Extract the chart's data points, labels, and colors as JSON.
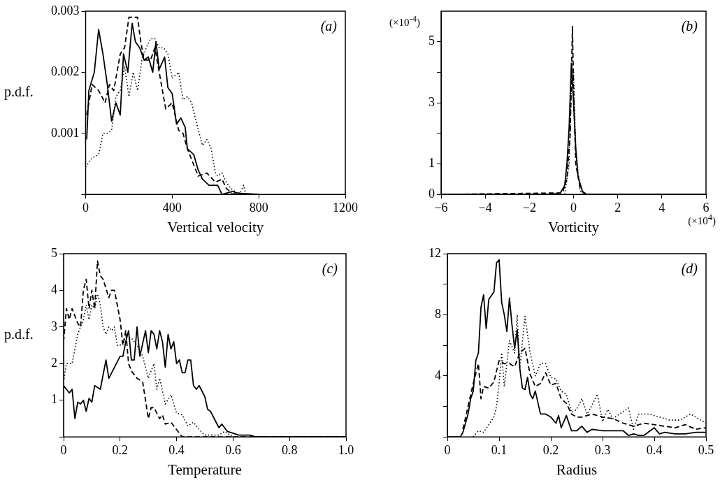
{
  "chart_data": [
    {
      "type": "line",
      "xlabel": "Vertical velocity",
      "ylabel": "p.d.f.",
      "annotations": [
        "(a)"
      ],
      "xlim": [
        0,
        1200
      ],
      "xticks": [
        0,
        400,
        800,
        1200
      ],
      "ylim": [
        0,
        0.003
      ],
      "yticks": [
        {
          "value": 0,
          "label": null
        },
        0.001,
        0.002,
        0.003
      ],
      "series": [
        {
          "color": "#000000",
          "line_style": "solid",
          "x": [
            5,
            15,
            40,
            60,
            80,
            100,
            120,
            140,
            160,
            175,
            195,
            215,
            230,
            250,
            270,
            290,
            310,
            325,
            340,
            365,
            380,
            400,
            420,
            440,
            460,
            470,
            500,
            520,
            540,
            570,
            610,
            630,
            660,
            680,
            700,
            760,
            800
          ],
          "values": [
            0.0009,
            0.0017,
            0.002,
            0.0027,
            0.0023,
            0.0018,
            0.0012,
            0.0015,
            0.0013,
            0.0023,
            0.002,
            0.0028,
            0.0025,
            0.0024,
            0.0022,
            0.00225,
            0.002,
            0.0025,
            0.00205,
            0.00225,
            0.00175,
            0.00165,
            0.00115,
            0.00125,
            0.0011,
            0.00075,
            0.00065,
            0.0004,
            0.00025,
            0.00015,
            0.00015,
            0,
            3e-05,
            5e-05,
            2e-05,
            1e-05,
            0
          ]
        },
        {
          "color": "#000000",
          "line_style": "dashed",
          "x": [
            5,
            30,
            60,
            90,
            110,
            130,
            160,
            180,
            200,
            240,
            255,
            270,
            300,
            320,
            340,
            370,
            400,
            430,
            450,
            470,
            520,
            560,
            600,
            630,
            650,
            680,
            700,
            730
          ],
          "values": [
            0.0013,
            0.0018,
            0.0017,
            0.0015,
            0.0018,
            0.0017,
            0.0023,
            0.0024,
            0.0029,
            0.0029,
            0.0025,
            0.0022,
            0.0022,
            0.0024,
            0.002,
            0.0014,
            0.0015,
            0.00105,
            0.001,
            0.00075,
            0.0003,
            0.00035,
            0.0002,
            0.00025,
            0.0001,
            0,
            3e-05,
            0
          ]
        },
        {
          "color": "#000000",
          "line_style": "dotted",
          "x": [
            0,
            30,
            60,
            80,
            100,
            120,
            140,
            160,
            180,
            200,
            220,
            240,
            260,
            280,
            300,
            320,
            340,
            360,
            380,
            400,
            430,
            450,
            470,
            490,
            510,
            540,
            560,
            580,
            600,
            610,
            630,
            650,
            670,
            690,
            710,
            730,
            740,
            800
          ],
          "values": [
            0.00045,
            0.0006,
            0.00065,
            0.001,
            0.001,
            0.00105,
            0.0016,
            0.0017,
            0.0021,
            0.0016,
            0.002,
            0.0017,
            0.0022,
            0.0024,
            0.00255,
            0.00255,
            0.0024,
            0.0024,
            0.0023,
            0.0019,
            0.002,
            0.00155,
            0.0016,
            0.0015,
            0.0012,
            0.0008,
            0.0009,
            0.00075,
            0.00035,
            0.0003,
            0.00035,
            0.0002,
            0.0001,
            5e-05,
            0,
            0.00015,
            0,
            0
          ]
        }
      ]
    },
    {
      "type": "line",
      "xlabel": "Vorticity",
      "annotations": [
        "(b)",
        "(×10$^{-4}$)",
        "(×10$^{4}$)"
      ],
      "xlim": [
        -6,
        6
      ],
      "xticks": [
        -6,
        -4,
        -2,
        0,
        2,
        4,
        6
      ],
      "ylim": [
        0,
        6
      ],
      "yticks": [
        0,
        1,
        {
          "value": 2,
          "label": null
        },
        3,
        {
          "value": 4,
          "label": null
        },
        5
      ],
      "series": [
        {
          "color": "#000000",
          "line_style": "solid",
          "x": [
            -6,
            -1,
            -0.6,
            -0.4,
            -0.3,
            -0.2,
            -0.1,
            0,
            0.1,
            0.2,
            0.4,
            0.6,
            6
          ],
          "values": [
            0,
            0,
            0.05,
            0.3,
            1,
            2.2,
            4.3,
            3,
            1.5,
            0.6,
            0.1,
            0,
            0
          ]
        },
        {
          "color": "#000000",
          "line_style": "dashed",
          "x": [
            -6,
            -0.5,
            -0.3,
            -0.15,
            -0.05,
            0,
            0.1,
            0.3,
            0.5,
            6
          ],
          "values": [
            0,
            0.05,
            0.5,
            2,
            5.5,
            3.5,
            1,
            0.2,
            0,
            0
          ]
        },
        {
          "color": "#000000",
          "line_style": "dotted",
          "x": [
            -0.4,
            -0.2,
            -0.1,
            0,
            0.1,
            0.3,
            0.5
          ],
          "values": [
            0,
            1,
            3.5,
            4,
            1.5,
            0.1,
            0
          ]
        }
      ]
    },
    {
      "type": "line",
      "xlabel": "Temperature",
      "ylabel": "p.d.f.",
      "annotations": [
        "(c)"
      ],
      "xlim": [
        0,
        1
      ],
      "xticks": [
        0,
        0.2,
        0.4,
        0.6,
        0.8,
        {
          "value": 1,
          "label": "1.0"
        }
      ],
      "ylim": [
        0,
        5
      ],
      "yticks": [
        {
          "value": 0,
          "label": null
        },
        1,
        2,
        3,
        4,
        5
      ],
      "series": [
        {
          "color": "#000000",
          "line_style": "solid",
          "x": [
            0,
            0.02,
            0.03,
            0.04,
            0.05,
            0.06,
            0.07,
            0.08,
            0.09,
            0.1,
            0.11,
            0.13,
            0.15,
            0.16,
            0.18,
            0.2,
            0.21,
            0.22,
            0.23,
            0.24,
            0.25,
            0.26,
            0.27,
            0.29,
            0.3,
            0.31,
            0.32,
            0.33,
            0.34,
            0.35,
            0.36,
            0.37,
            0.38,
            0.39,
            0.4,
            0.41,
            0.42,
            0.43,
            0.44,
            0.45,
            0.46,
            0.47,
            0.48,
            0.5,
            0.51,
            0.52,
            0.54,
            0.55,
            0.56,
            0.58,
            0.6,
            0.62,
            0.66,
            0.68,
            1.0
          ],
          "values": [
            1.4,
            1.2,
            1.3,
            0.5,
            0.95,
            0.9,
            1,
            0.7,
            1.05,
            0.95,
            1.4,
            1.3,
            2.1,
            1.6,
            1.9,
            2.2,
            2.2,
            2.6,
            2.9,
            2.1,
            2.1,
            3.0,
            2.2,
            2.9,
            2.3,
            2.9,
            2.8,
            2.4,
            2.9,
            2.6,
            1.9,
            2.8,
            2.4,
            2.6,
            2.0,
            2.1,
            1.75,
            1.75,
            2.1,
            2.1,
            1.4,
            1.3,
            1.4,
            1.1,
            0.75,
            0.7,
            0.4,
            0.25,
            0.35,
            0.15,
            0.1,
            0.05,
            0.05,
            0,
            0
          ]
        },
        {
          "color": "#000000",
          "line_style": "dashed",
          "x": [
            0,
            0.01,
            0.02,
            0.03,
            0.05,
            0.06,
            0.07,
            0.08,
            0.09,
            0.1,
            0.11,
            0.12,
            0.13,
            0.14,
            0.16,
            0.17,
            0.18,
            0.2,
            0.21,
            0.22,
            0.23,
            0.24,
            0.26,
            0.28,
            0.3,
            0.31,
            0.32,
            0.34,
            0.35,
            0.36,
            0.38,
            0.4,
            0.42,
            0.44,
            1.0
          ],
          "values": [
            2.6,
            3.5,
            3.2,
            3.5,
            3.1,
            3.0,
            4.0,
            4.3,
            3.5,
            4.0,
            3.5,
            4.8,
            4.4,
            4.3,
            3.8,
            4.0,
            4.0,
            3.2,
            2.5,
            2.9,
            2.0,
            1.8,
            1.6,
            1.5,
            0.5,
            0.8,
            0.8,
            0.5,
            0.6,
            0.35,
            0.4,
            0.2,
            0,
            0,
            0
          ]
        },
        {
          "color": "#000000",
          "line_style": "dotted",
          "x": [
            0,
            0.01,
            0.03,
            0.05,
            0.06,
            0.07,
            0.08,
            0.09,
            0.1,
            0.11,
            0.12,
            0.13,
            0.14,
            0.15,
            0.16,
            0.17,
            0.18,
            0.19,
            0.2,
            0.22,
            0.24,
            0.26,
            0.28,
            0.3,
            0.32,
            0.33,
            0.34,
            0.36,
            0.38,
            0.4,
            0.42,
            0.44,
            0.46,
            0.48,
            0.5,
            0.52,
            0.55,
            0.57,
            0.6,
            1.0
          ],
          "values": [
            1.5,
            2.0,
            2.0,
            2.8,
            3.0,
            3.2,
            3.6,
            3.2,
            3.6,
            3.5,
            3.9,
            3.6,
            3.0,
            2.8,
            3.0,
            2.9,
            3.0,
            2.5,
            2.5,
            2.7,
            2.7,
            2.5,
            2.2,
            1.6,
            2.0,
            1.3,
            1.6,
            0.9,
            1.15,
            0.65,
            0.6,
            0.3,
            0.4,
            0.2,
            0.05,
            0.05,
            0.05,
            0.15,
            0,
            0
          ]
        }
      ]
    },
    {
      "type": "line",
      "xlabel": "Radius",
      "annotations": [
        "(d)"
      ],
      "xlim": [
        0,
        0.5
      ],
      "xticks": [
        0,
        0.1,
        0.2,
        0.3,
        0.4,
        0.5
      ],
      "ylim": [
        0,
        12
      ],
      "yticks": [
        {
          "value": 0,
          "label": null
        },
        {
          "value": 2,
          "label": null
        },
        4,
        {
          "value": 6,
          "label": null
        },
        8,
        {
          "value": 10,
          "label": null
        },
        12
      ],
      "series": [
        {
          "color": "#000000",
          "line_style": "solid",
          "x": [
            0,
            0.025,
            0.03,
            0.04,
            0.045,
            0.05,
            0.055,
            0.06,
            0.065,
            0.07,
            0.075,
            0.08,
            0.09,
            0.095,
            0.1,
            0.105,
            0.11,
            0.115,
            0.12,
            0.125,
            0.13,
            0.135,
            0.14,
            0.145,
            0.15,
            0.155,
            0.16,
            0.165,
            0.17,
            0.18,
            0.19,
            0.2,
            0.21,
            0.215,
            0.22,
            0.23,
            0.24,
            0.25,
            0.26,
            0.27,
            0.28,
            0.3,
            0.32,
            0.34,
            0.35,
            0.36,
            0.37,
            0.38,
            0.4,
            0.41,
            0.42,
            0.44,
            0.46,
            0.48,
            0.5
          ],
          "values": [
            0,
            0,
            0.3,
            1.5,
            2.5,
            3,
            5,
            5.5,
            8.5,
            9.3,
            7.1,
            9,
            9.5,
            11.4,
            11.6,
            8.8,
            8,
            6.9,
            9.1,
            7.3,
            5.8,
            7,
            4.5,
            3.2,
            3.1,
            3.9,
            2.8,
            2.5,
            3.0,
            1.5,
            1.5,
            1.3,
            0.9,
            1.4,
            0.6,
            1.4,
            0.4,
            0.4,
            0.7,
            0.3,
            0.5,
            0.4,
            0.4,
            0.4,
            0.1,
            0.2,
            0.1,
            0.1,
            0.6,
            0.2,
            0.3,
            0.2,
            0.2,
            0.3,
            0.3
          ]
        },
        {
          "color": "#000000",
          "line_style": "dashed",
          "x": [
            0.03,
            0.04,
            0.05,
            0.06,
            0.065,
            0.07,
            0.08,
            0.09,
            0.1,
            0.11,
            0.12,
            0.13,
            0.14,
            0.15,
            0.16,
            0.17,
            0.18,
            0.19,
            0.2,
            0.21,
            0.22,
            0.23,
            0.24,
            0.25,
            0.26,
            0.28,
            0.3,
            0.32,
            0.34,
            0.36,
            0.38,
            0.4,
            0.42,
            0.44,
            0.46,
            0.48,
            0.5
          ],
          "values": [
            0.5,
            2,
            3.5,
            4.8,
            2.5,
            3.3,
            3.2,
            3.6,
            5,
            4.8,
            4.8,
            4.6,
            5.5,
            5.8,
            4.1,
            3.3,
            3.5,
            4.2,
            3.4,
            3.5,
            2.5,
            2.2,
            1.5,
            1.3,
            1.3,
            1.5,
            1.3,
            1.2,
            0.9,
            0.7,
            0.9,
            0.8,
            0.7,
            0.6,
            0.8,
            0.5,
            0.6
          ]
        },
        {
          "color": "#000000",
          "line_style": "dotted",
          "x": [
            0.05,
            0.06,
            0.07,
            0.08,
            0.09,
            0.095,
            0.1,
            0.105,
            0.11,
            0.12,
            0.13,
            0.135,
            0.14,
            0.15,
            0.16,
            0.17,
            0.18,
            0.19,
            0.2,
            0.21,
            0.22,
            0.23,
            0.24,
            0.25,
            0.26,
            0.27,
            0.28,
            0.29,
            0.3,
            0.31,
            0.32,
            0.35,
            0.36,
            0.37,
            0.39,
            0.41,
            0.43,
            0.45,
            0.47,
            0.49,
            0.5
          ],
          "values": [
            0,
            0.4,
            0.3,
            0.8,
            1.3,
            2,
            3.5,
            5.5,
            3.3,
            6.3,
            5.5,
            8,
            4.5,
            7.9,
            5.5,
            4,
            4.8,
            4.8,
            3.9,
            3.8,
            3,
            2.8,
            1.6,
            1.8,
            2.5,
            1.5,
            2.1,
            2.8,
            1.0,
            1.8,
            1.2,
            1.9,
            0.5,
            1.5,
            1.5,
            1.3,
            1.1,
            1.1,
            1.5,
            1.1,
            0.9
          ]
        }
      ]
    }
  ]
}
